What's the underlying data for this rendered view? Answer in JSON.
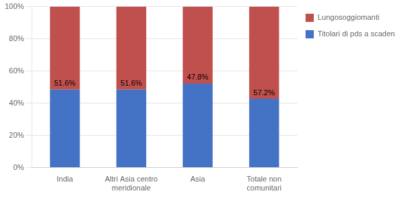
{
  "chart_data": {
    "type": "bar",
    "categories": [
      "India",
      "Altri Asia centro\nmeridionale",
      "Asia",
      "Totale non\ncomunitari"
    ],
    "series": [
      {
        "name": "Titolari di pds a scadenza",
        "color": "#4472C4",
        "values": [
          48.4,
          48.4,
          52.2,
          42.8
        ]
      },
      {
        "name": "Lungosoggiomanti",
        "color": "#C0504D",
        "values": [
          51.6,
          51.6,
          47.8,
          57.2
        ],
        "data_labels": true,
        "value_labels": [
          "51.6%",
          "51.6%",
          "47.8%",
          "57.2%"
        ]
      }
    ],
    "stacked": true,
    "ylim": [
      0,
      100
    ],
    "yticks": [
      {
        "value": 0,
        "label": "0%"
      },
      {
        "value": 20,
        "label": "20%"
      },
      {
        "value": 40,
        "label": "40%"
      },
      {
        "value": 60,
        "label": "60%"
      },
      {
        "value": 80,
        "label": "80%"
      },
      {
        "value": 100,
        "label": "100%"
      }
    ],
    "grid": true,
    "legend": "right"
  }
}
